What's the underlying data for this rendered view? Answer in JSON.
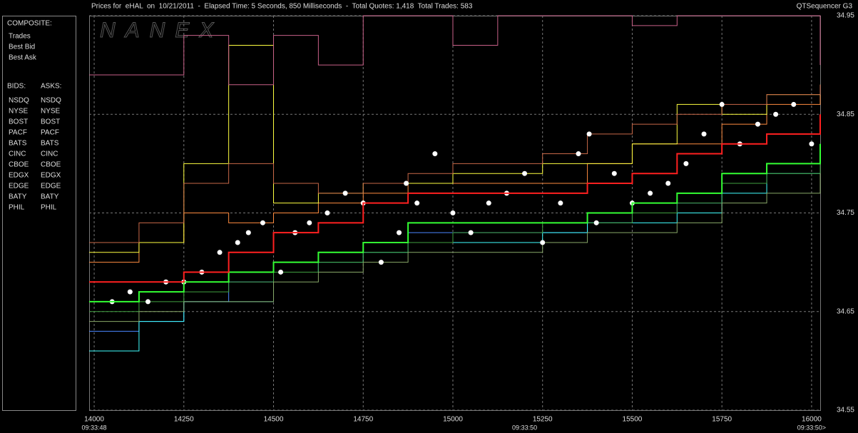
{
  "chart_data": {
    "type": "line",
    "title": "Prices for  eHAL  on  10/21/2011  -  Elapsed Time: 5 Seconds, 850 Milliseconds  -  Total Quotes: 1,418  Total Trades: 583",
    "subtitle": "QTSequencer G3",
    "watermark": "NANEX",
    "xlim": [
      13986,
      16024
    ],
    "xticks": [
      14000,
      14250,
      14500,
      14750,
      15000,
      15250,
      15500,
      15750,
      16000
    ],
    "ylim": [
      34.55,
      34.95
    ],
    "yticks": [
      34.55,
      {
        "value": 34.65,
        "label": "34.65"
      },
      {
        "value": 34.75,
        "label": "34.75"
      },
      {
        "value": 34.85,
        "label": "34.85"
      },
      {
        "value": 34.95,
        "label": "34.95"
      }
    ],
    "grid": true,
    "time_labels": [
      {
        "x": 14000,
        "label": "09:33:48"
      },
      {
        "x": 15200,
        "label": "09:33:50"
      },
      {
        "x": 16000,
        "label": "09:33:50>"
      }
    ],
    "x": [
      13986,
      14125,
      14250,
      14375,
      14500,
      14625,
      14750,
      14875,
      15000,
      15125,
      15250,
      15375,
      15500,
      15625,
      15750,
      15875,
      16024
    ],
    "legend_title": "COMPOSITE:",
    "series": [
      {
        "name": "Trades",
        "color": "#ffffff",
        "kind": "scatter",
        "x": [
          14050,
          14100,
          14150,
          14200,
          14250,
          14300,
          14350,
          14400,
          14430,
          14470,
          14520,
          14560,
          14600,
          14650,
          14700,
          14750,
          14800,
          14850,
          14870,
          14900,
          14950,
          15000,
          15050,
          15100,
          15150,
          15200,
          15250,
          15300,
          15350,
          15380,
          15400,
          15450,
          15500,
          15550,
          15600,
          15650,
          15700,
          15750,
          15800,
          15850,
          15900,
          15950,
          16000
        ],
        "values": [
          34.66,
          34.67,
          34.66,
          34.68,
          34.68,
          34.69,
          34.71,
          34.72,
          34.73,
          34.74,
          34.69,
          34.73,
          34.74,
          34.75,
          34.77,
          34.76,
          34.7,
          34.73,
          34.78,
          34.76,
          34.81,
          34.75,
          34.73,
          34.76,
          34.77,
          34.79,
          34.72,
          34.76,
          34.81,
          34.83,
          34.74,
          34.79,
          34.76,
          34.77,
          34.78,
          34.8,
          34.83,
          34.86,
          34.82,
          34.84,
          34.85,
          34.86,
          34.82
        ]
      },
      {
        "name": "Best Bid",
        "color": "#33ff33",
        "kind": "step",
        "values": [
          34.66,
          34.67,
          34.68,
          34.69,
          34.7,
          34.71,
          34.72,
          34.74,
          34.74,
          34.74,
          34.74,
          34.75,
          34.76,
          34.77,
          34.79,
          34.8,
          34.82
        ]
      },
      {
        "name": "Best Ask",
        "color": "#ff2020",
        "kind": "step",
        "values": [
          34.68,
          34.68,
          34.69,
          34.71,
          34.73,
          34.74,
          34.76,
          34.77,
          34.77,
          34.77,
          34.77,
          34.78,
          34.79,
          34.81,
          34.82,
          34.83,
          34.85
        ]
      }
    ],
    "bids_title": "BIDS:",
    "asks_title": "ASKS:",
    "exchanges": [
      {
        "name": "NSDQ",
        "bid_color": "#4a86ff",
        "ask_color": "#ff8c40",
        "bid_values": [
          34.63,
          34.64,
          34.66,
          34.68,
          34.69,
          34.71,
          34.72,
          34.73,
          34.73,
          34.73,
          34.73,
          34.74,
          34.75,
          34.76,
          34.78,
          34.8,
          34.82
        ],
        "ask_values": [
          34.7,
          34.72,
          34.75,
          34.74,
          34.75,
          34.76,
          34.77,
          34.78,
          34.78,
          34.78,
          34.78,
          34.8,
          34.82,
          34.82,
          34.84,
          34.86,
          34.87
        ]
      },
      {
        "name": "NYSE",
        "bid_color": "#ffff99",
        "ask_color": "#ffb870"
      },
      {
        "name": "BOST",
        "bid_color": "#88cc88",
        "ask_color": "#ff9070"
      },
      {
        "name": "PACF",
        "bid_color": "#40ffff",
        "ask_color": "#ffff40",
        "bid_values": [
          34.61,
          34.64,
          34.66,
          34.66,
          34.69,
          34.7,
          34.71,
          34.72,
          34.72,
          34.72,
          34.73,
          34.74,
          34.74,
          34.75,
          34.77,
          34.79,
          34.81
        ],
        "ask_values": [
          34.71,
          34.72,
          34.8,
          34.92,
          34.76,
          34.77,
          34.78,
          34.78,
          34.79,
          34.79,
          34.8,
          34.8,
          34.82,
          34.86,
          34.85,
          34.87,
          34.88
        ]
      },
      {
        "name": "BATS",
        "bid_color": "#90c8ff",
        "ask_color": "#ffe0a0"
      },
      {
        "name": "CINC",
        "bid_color": "#4a8aa8",
        "ask_color": "#c0a080"
      },
      {
        "name": "CBOE",
        "bid_color": "#2850c8",
        "ask_color": "#ff8a10"
      },
      {
        "name": "EDGX",
        "bid_color": "#40a040",
        "ask_color": "#c86848",
        "bid_values": [
          34.65,
          34.66,
          34.67,
          34.68,
          34.69,
          34.7,
          34.71,
          34.72,
          34.73,
          34.73,
          34.74,
          34.74,
          34.75,
          34.76,
          34.78,
          34.79,
          34.81
        ],
        "ask_values": [
          34.72,
          34.74,
          34.78,
          34.8,
          34.78,
          34.77,
          34.78,
          34.79,
          34.8,
          34.8,
          34.81,
          34.83,
          34.84,
          34.85,
          34.86,
          34.87,
          34.88
        ]
      },
      {
        "name": "EDGE",
        "bid_color": "#88c848",
        "ask_color": "#ff8848"
      },
      {
        "name": "BATY",
        "bid_color": "#4a6aff",
        "ask_color": "#ff6060"
      },
      {
        "name": "PHIL",
        "bid_color": "#88a868",
        "ask_color": "#c86088",
        "bid_values": [
          34.64,
          34.65,
          34.66,
          34.66,
          34.68,
          34.69,
          34.7,
          34.71,
          34.71,
          34.71,
          34.72,
          34.73,
          34.73,
          34.74,
          34.76,
          34.77,
          34.79
        ],
        "ask_values": [
          34.89,
          34.89,
          34.93,
          34.88,
          34.93,
          34.9,
          34.95,
          34.95,
          34.92,
          34.95,
          34.95,
          34.95,
          34.94,
          34.95,
          34.95,
          34.95,
          34.9
        ]
      }
    ]
  }
}
